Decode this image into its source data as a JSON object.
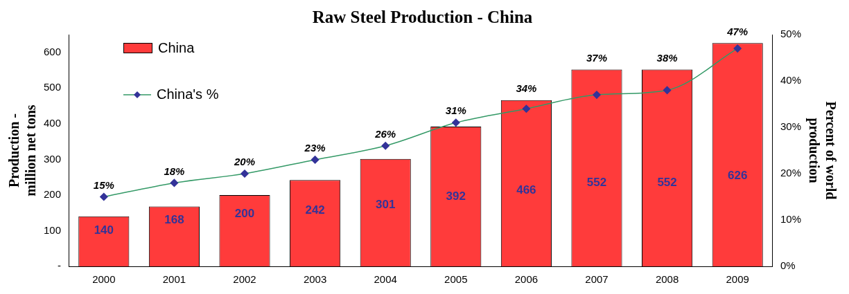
{
  "chart_data": {
    "type": "bar",
    "title": "Raw Steel Production - China",
    "categories": [
      "2000",
      "2001",
      "2002",
      "2003",
      "2004",
      "2005",
      "2006",
      "2007",
      "2008",
      "2009"
    ],
    "series": [
      {
        "name": "China",
        "color": "#ff3b3b",
        "values": [
          140,
          168,
          200,
          242,
          301,
          392,
          466,
          552,
          552,
          626
        ],
        "value_labels": [
          "140",
          "168",
          "200",
          "242",
          "301",
          "392",
          "466",
          "552",
          "552",
          "626"
        ]
      },
      {
        "name": "China's %",
        "type": "line",
        "axis": "y2",
        "color": "#339966",
        "marker": "diamond",
        "values": [
          15,
          18,
          20,
          23,
          26,
          31,
          34,
          37,
          38,
          47
        ],
        "value_labels": [
          "15%",
          "18%",
          "20%",
          "23%",
          "26%",
          "31%",
          "34%",
          "37%",
          "38%",
          "47%"
        ]
      }
    ],
    "ylabel": "Production - million net tons",
    "y2label": "Percent of world production",
    "ylim": [
      0,
      650
    ],
    "yticks": [
      {
        "value": 0,
        "label": "-"
      },
      100,
      200,
      300,
      400,
      500,
      600
    ],
    "y2lim": [
      0,
      50
    ],
    "y2ticks": [
      {
        "value": 0,
        "label": "0%"
      },
      {
        "value": 10,
        "label": "10%"
      },
      {
        "value": 20,
        "label": "20%"
      },
      {
        "value": 30,
        "label": "30%"
      },
      {
        "value": 40,
        "label": "40%"
      },
      {
        "value": 50,
        "label": "50%"
      }
    ],
    "grid": false,
    "legend": "top left"
  }
}
